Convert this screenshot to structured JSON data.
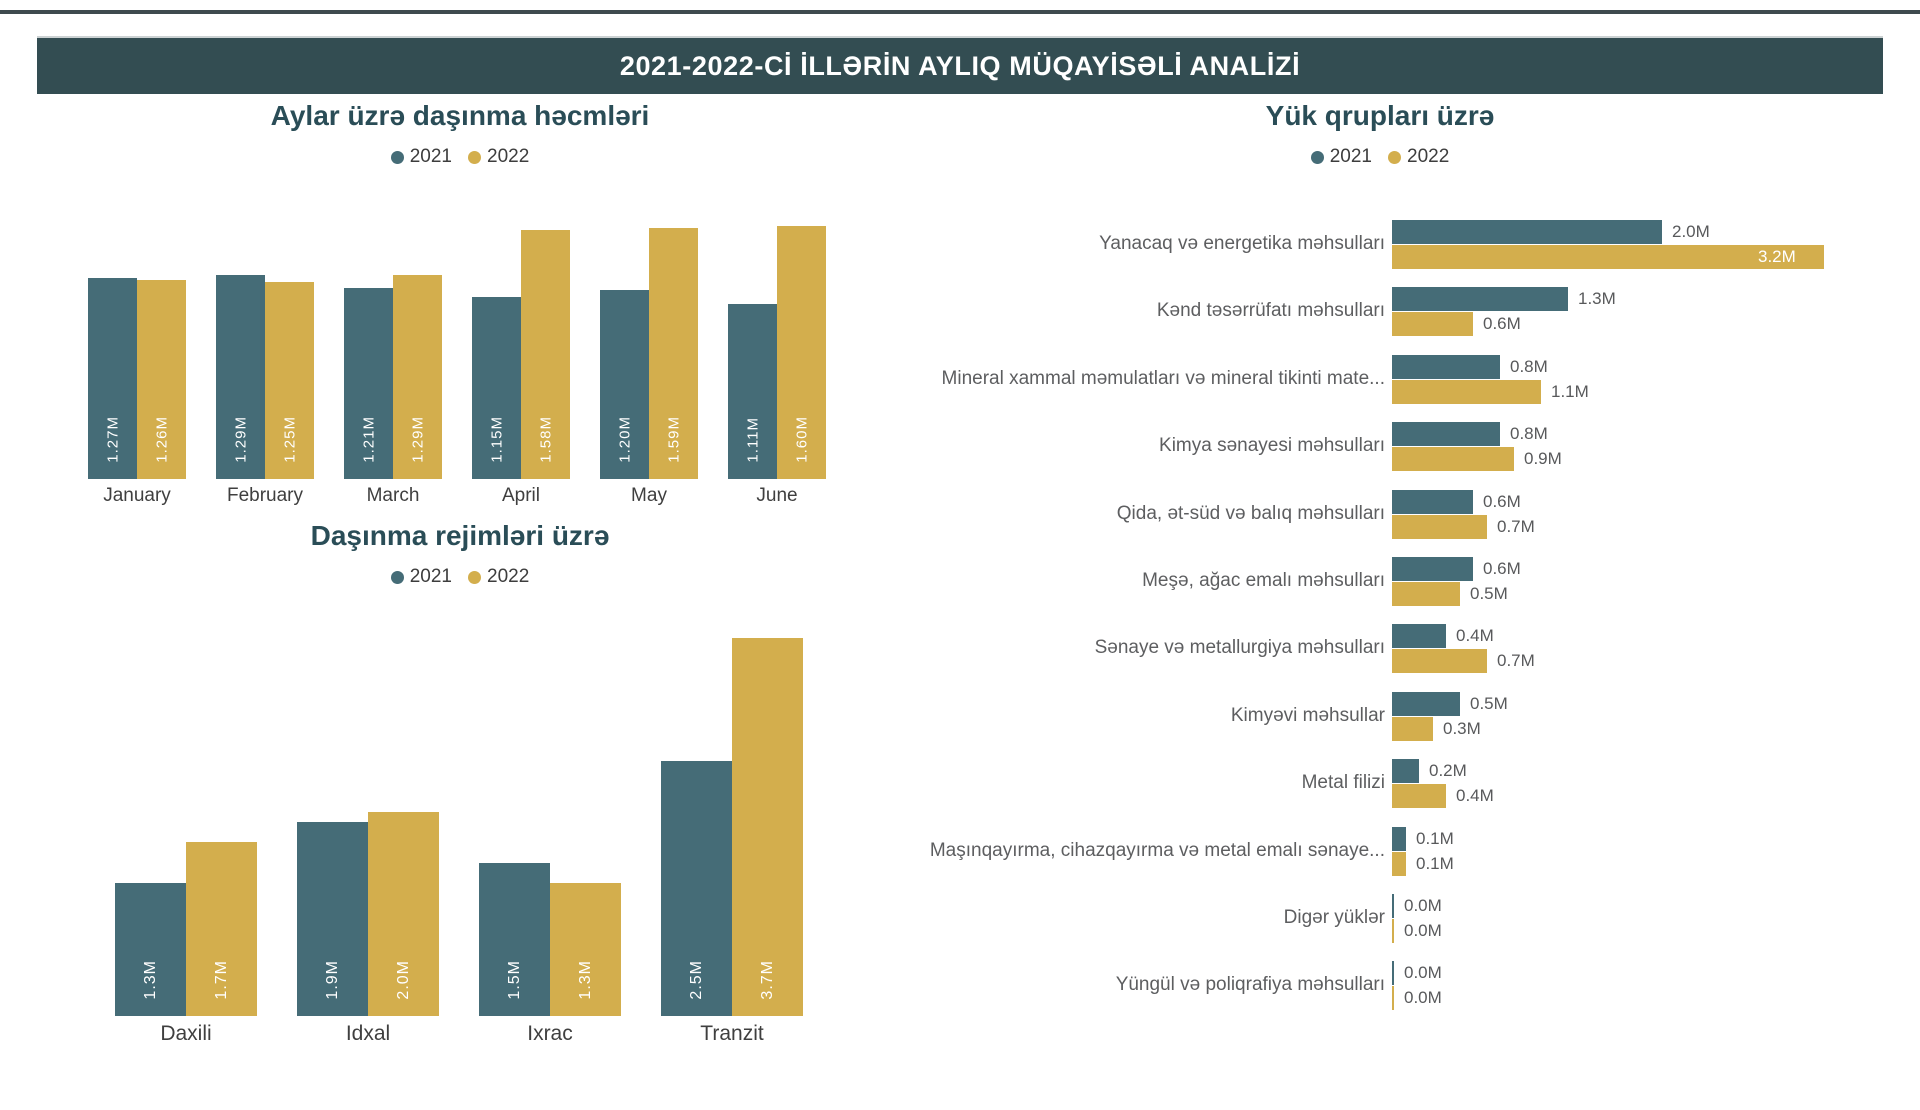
{
  "page": {
    "banner_title": "2021-2022-Cİ İLLƏRİN AYLIQ MÜQAYİSƏLİ ANALİZİ"
  },
  "colors": {
    "series_2021": "#456c77",
    "series_2022": "#d3ae4d",
    "banner_background": "#334d52",
    "chart_title_text": "#2a4d57"
  },
  "chart_data": [
    {
      "id": "monthly-volumes",
      "type": "bar",
      "orientation": "vertical",
      "title": "Aylar üzrə daşınma həcmləri",
      "categories": [
        "January",
        "February",
        "March",
        "April",
        "May",
        "June"
      ],
      "series": [
        {
          "name": "2021",
          "color": "#456c77",
          "values": [
            1.27,
            1.29,
            1.21,
            1.15,
            1.2,
            1.11
          ],
          "labels": [
            "1.27M",
            "1.29M",
            "1.21M",
            "1.15M",
            "1.20M",
            "1.11M"
          ]
        },
        {
          "name": "2022",
          "color": "#d3ae4d",
          "values": [
            1.26,
            1.25,
            1.29,
            1.58,
            1.59,
            1.6
          ],
          "labels": [
            "1.26M",
            "1.25M",
            "1.29M",
            "1.58M",
            "1.59M",
            "1.60M"
          ]
        }
      ],
      "ylim": [
        0,
        1.9
      ],
      "grid": false,
      "legend_position": "top"
    },
    {
      "id": "transport-modes",
      "type": "bar",
      "orientation": "vertical",
      "title": "Daşınma rejimləri üzrə",
      "categories": [
        "Daxili",
        "Idxal",
        "Ixrac",
        "Tranzit"
      ],
      "series": [
        {
          "name": "2021",
          "color": "#456c77",
          "values": [
            1.3,
            1.9,
            1.5,
            2.5
          ],
          "labels": [
            "1.3M",
            "1.9M",
            "1.5M",
            "2.5M"
          ]
        },
        {
          "name": "2022",
          "color": "#d3ae4d",
          "values": [
            1.7,
            2.0,
            1.3,
            3.7
          ],
          "labels": [
            "1.7M",
            "2.0M",
            "1.3M",
            "3.7M"
          ]
        }
      ],
      "ylim": [
        0,
        3.8
      ],
      "grid": false,
      "legend_position": "top"
    },
    {
      "id": "cargo-groups",
      "type": "bar",
      "orientation": "horizontal",
      "title": "Yük qrupları üzrə",
      "categories": [
        "Yanacaq və energetika məhsulları",
        "Kənd təsərrüfatı məhsulları",
        "Mineral xammal məmulatları və mineral tikinti mate...",
        "Kimya sənayesi məhsulları",
        "Qida, ət-süd və balıq məhsulları",
        "Meşə, ağac emalı məhsulları",
        "Sənaye və metallurgiya məhsulları",
        "Kimyəvi məhsullar",
        "Metal filizi",
        "Maşınqayırma, cihazqayırma və metal emalı sənaye...",
        "Digər yüklər",
        "Yüngül və poliqrafiya məhsulları"
      ],
      "series": [
        {
          "name": "2021",
          "color": "#456c77",
          "values": [
            2.0,
            1.3,
            0.8,
            0.8,
            0.6,
            0.6,
            0.4,
            0.5,
            0.2,
            0.1,
            0.0,
            0.0
          ],
          "labels": [
            "2.0M",
            "1.3M",
            "0.8M",
            "0.8M",
            "0.6M",
            "0.6M",
            "0.4M",
            "0.5M",
            "0.2M",
            "0.1M",
            "0.0M",
            "0.0M"
          ]
        },
        {
          "name": "2022",
          "color": "#d3ae4d",
          "values": [
            3.2,
            0.6,
            1.1,
            0.9,
            0.7,
            0.5,
            0.7,
            0.3,
            0.4,
            0.1,
            0.0,
            0.0
          ],
          "labels": [
            "3.2M",
            "0.6M",
            "1.1M",
            "0.9M",
            "0.7M",
            "0.5M",
            "0.7M",
            "0.3M",
            "0.4M",
            "0.1M",
            "0.0M",
            "0.0M"
          ]
        }
      ],
      "xlim": [
        0,
        3.3
      ],
      "grid": false,
      "legend_position": "top"
    }
  ]
}
